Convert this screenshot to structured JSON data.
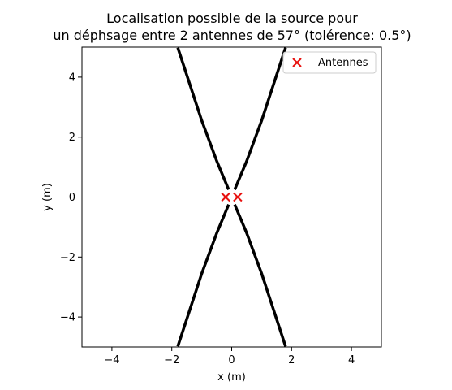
{
  "chart_data": {
    "type": "scatter",
    "title_line1": "Localisation possible de la source pour",
    "title_line2": "un déphsage entre 2 antennes de 57° (tolérence: 0.5°)",
    "xlabel": "x (m)",
    "ylabel": "y (m)",
    "xlim": [
      -5,
      5
    ],
    "ylim": [
      -5,
      5
    ],
    "xticks": [
      -4,
      -2,
      0,
      2,
      4
    ],
    "yticks": [
      -4,
      -2,
      0,
      2,
      4
    ],
    "xtick_labels": [
      "−4",
      "−2",
      "0",
      "2",
      "4"
    ],
    "ytick_labels": [
      "−4",
      "−2",
      "0",
      "2",
      "4"
    ],
    "grid": false,
    "legend_position": "upper right",
    "series": [
      {
        "name": "",
        "kind": "region",
        "color": "#000000",
        "branches": [
          {
            "x": [
              0.1,
              0.5,
              1.0,
              1.8
            ],
            "y": [
              0.25,
              1.2,
              2.55,
              4.98
            ]
          },
          {
            "x": [
              0.1,
              0.5,
              1.0,
              1.8
            ],
            "y": [
              -0.25,
              -1.2,
              -2.55,
              -4.98
            ]
          },
          {
            "x": [
              -0.1,
              -0.5,
              -1.0,
              -1.8
            ],
            "y": [
              0.25,
              1.2,
              2.55,
              4.98
            ]
          },
          {
            "x": [
              -0.1,
              -0.5,
              -1.0,
              -1.8
            ],
            "y": [
              -0.25,
              -1.2,
              -2.55,
              -4.98
            ]
          }
        ]
      },
      {
        "name": "Antennes",
        "kind": "markers",
        "marker": "x",
        "color": "#e8110f",
        "points": [
          {
            "x": -0.2,
            "y": 0
          },
          {
            "x": 0.2,
            "y": 0
          }
        ]
      }
    ]
  }
}
